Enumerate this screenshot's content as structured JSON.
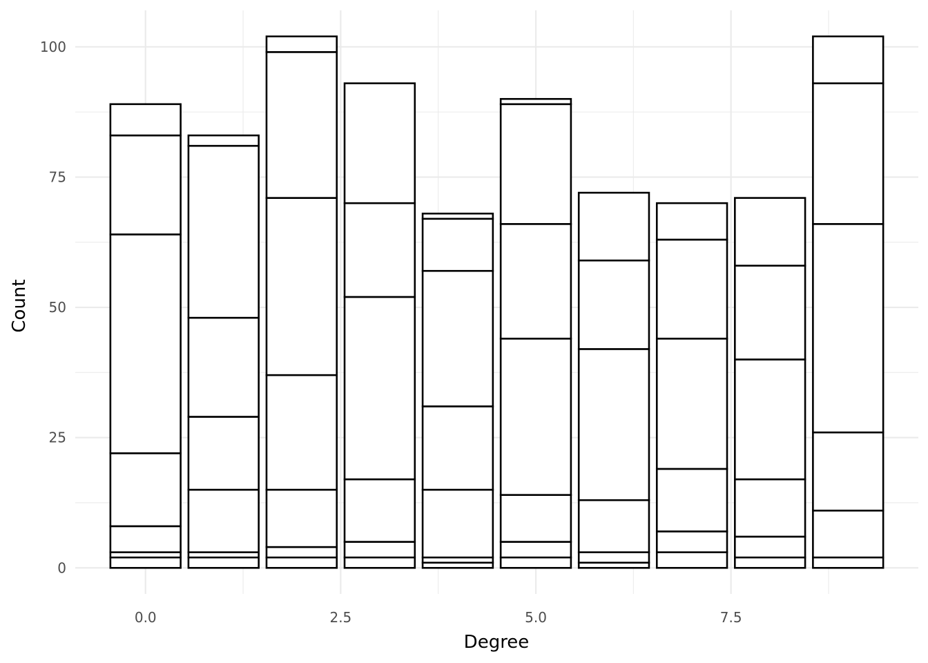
{
  "chart_data": {
    "type": "bar",
    "stacked": true,
    "xlabel": "Degree",
    "ylabel": "Count",
    "xlim": [
      -0.9,
      9.9
    ],
    "ylim": [
      -5,
      107
    ],
    "x_ticks": [
      0.0,
      2.5,
      5.0,
      7.5
    ],
    "x_tick_labels": [
      "0.0",
      "2.5",
      "5.0",
      "7.5"
    ],
    "y_ticks": [
      0,
      25,
      50,
      75,
      100
    ],
    "y_tick_labels": [
      "0",
      "25",
      "50",
      "75",
      "100"
    ],
    "grid": true,
    "bar_width": 0.9,
    "bars": [
      {
        "x": 0,
        "boundaries": [
          0,
          2,
          3,
          8,
          22,
          64,
          83,
          89
        ]
      },
      {
        "x": 1,
        "boundaries": [
          0,
          2,
          3,
          15,
          29,
          48,
          81,
          83
        ]
      },
      {
        "x": 2,
        "boundaries": [
          0,
          2,
          4,
          15,
          37,
          71,
          99,
          102
        ]
      },
      {
        "x": 3,
        "boundaries": [
          0,
          2,
          5,
          17,
          52,
          70,
          93
        ]
      },
      {
        "x": 4,
        "boundaries": [
          0,
          1,
          2,
          15,
          31,
          57,
          67,
          68
        ]
      },
      {
        "x": 5,
        "boundaries": [
          0,
          2,
          5,
          14,
          44,
          66,
          89,
          90
        ]
      },
      {
        "x": 6,
        "boundaries": [
          0,
          1,
          3,
          13,
          42,
          59,
          72
        ]
      },
      {
        "x": 7,
        "boundaries": [
          0,
          3,
          7,
          19,
          44,
          63,
          70
        ]
      },
      {
        "x": 8,
        "boundaries": [
          0,
          2,
          6,
          17,
          40,
          58,
          71
        ]
      },
      {
        "x": 9,
        "boundaries": [
          0,
          2,
          11,
          26,
          66,
          93,
          102
        ]
      }
    ]
  }
}
